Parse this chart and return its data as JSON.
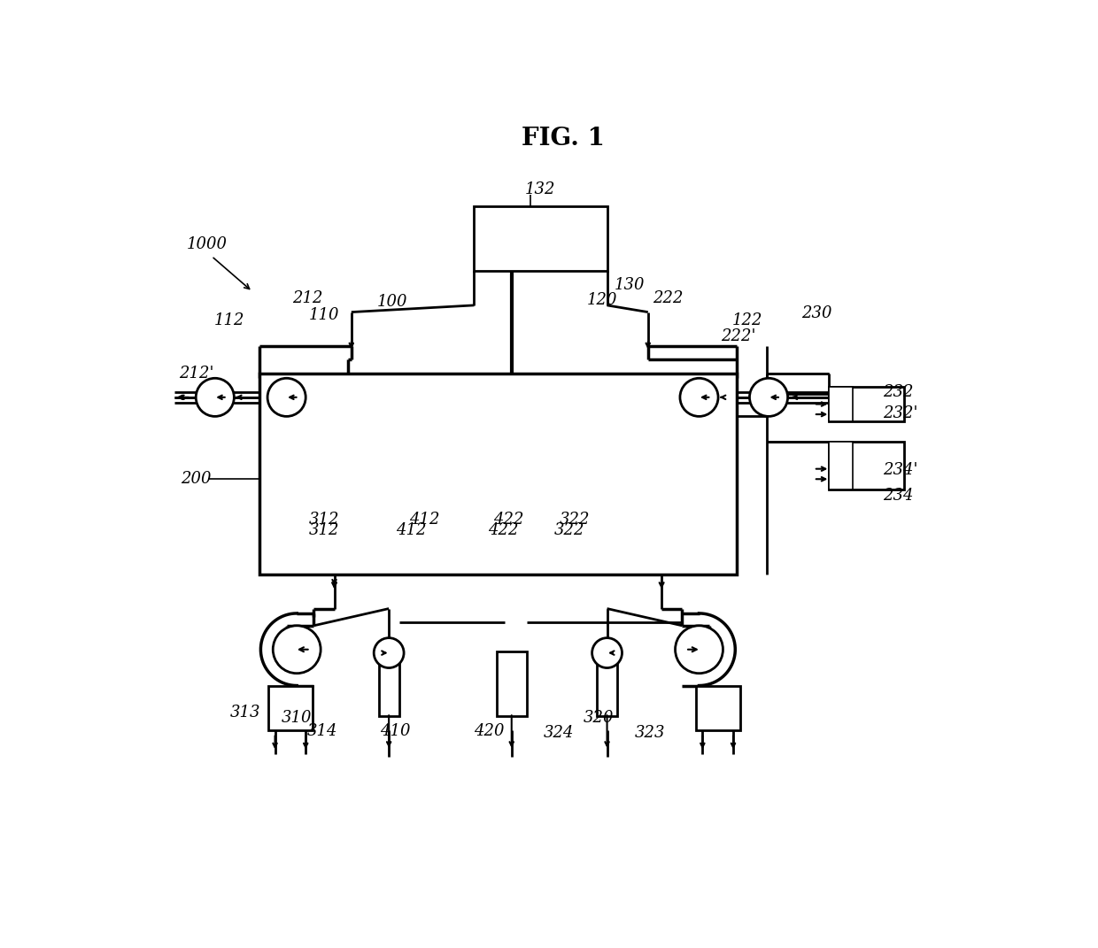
{
  "title": "FIG. 1",
  "bg": "#ffffff",
  "lc": "#000000",
  "fw": 12.4,
  "fh": 10.71,
  "dpi": 100
}
